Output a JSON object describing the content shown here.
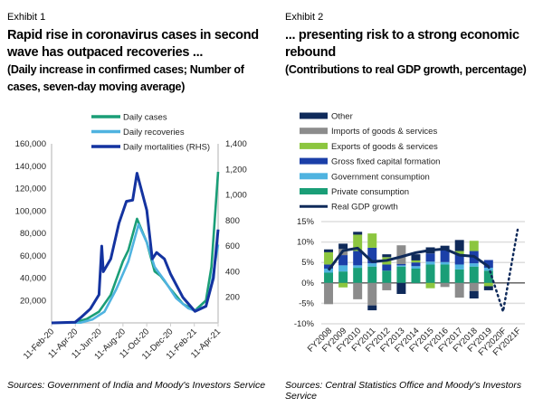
{
  "exhibit1": {
    "label": "Exhibit 1",
    "title": "Rapid rise in coronavirus cases in second wave has outpaced recoveries ...",
    "subtitle": "(Daily increase in confirmed cases; Number of cases, seven-day moving average)",
    "source": "Sources: Government of India and Moody's Investors Service"
  },
  "exhibit2": {
    "label": "Exhibit 2",
    "title": "... presenting risk to a strong economic rebound",
    "subtitle": "(Contributions to real GDP growth, percentage)",
    "source": "Sources: Central Statistics Office and Moody's Investors Service"
  },
  "chart_data": [
    {
      "type": "line",
      "legend_position": "top",
      "grid": false,
      "x_ticks": [
        "11-Feb-20",
        "11-Apr-20",
        "11-Jun-20",
        "11-Aug-20",
        "11-Oct-20",
        "11-Dec-20",
        "11-Feb-21",
        "11-Apr-21"
      ],
      "ylim": [
        0,
        160000
      ],
      "y_ticks": [
        "20,000",
        "40,000",
        "60,000",
        "80,000",
        "100,000",
        "120,000",
        "140,000",
        "160,000"
      ],
      "y2lim": [
        0,
        1400
      ],
      "y2_ticks": [
        "200",
        "400",
        "600",
        "800",
        "1,000",
        "1,200",
        "1,400"
      ],
      "series": [
        {
          "name": "Daily cases",
          "axis": "left",
          "color": "#1a9e77",
          "points": [
            [
              "2020-02-11",
              0
            ],
            [
              "2020-04-11",
              500
            ],
            [
              "2020-05-11",
              3500
            ],
            [
              "2020-06-11",
              10000
            ],
            [
              "2020-07-11",
              25000
            ],
            [
              "2020-08-11",
              55000
            ],
            [
              "2020-08-25",
              65000
            ],
            [
              "2020-09-16",
              93000
            ],
            [
              "2020-10-11",
              72000
            ],
            [
              "2020-10-31",
              46000
            ],
            [
              "2020-11-15",
              42000
            ],
            [
              "2020-12-11",
              30000
            ],
            [
              "2021-01-11",
              17000
            ],
            [
              "2021-02-11",
              11000
            ],
            [
              "2021-03-11",
              20000
            ],
            [
              "2021-03-25",
              50000
            ],
            [
              "2021-04-11",
              135000
            ]
          ]
        },
        {
          "name": "Daily recoveries",
          "axis": "left",
          "color": "#4fb3e0",
          "points": [
            [
              "2020-02-11",
              0
            ],
            [
              "2020-04-25",
              200
            ],
            [
              "2020-05-25",
              3000
            ],
            [
              "2020-06-25",
              10000
            ],
            [
              "2020-07-25",
              30000
            ],
            [
              "2020-08-25",
              55000
            ],
            [
              "2020-09-20",
              88000
            ],
            [
              "2020-10-11",
              72000
            ],
            [
              "2020-10-31",
              50000
            ],
            [
              "2020-11-25",
              38000
            ],
            [
              "2020-12-25",
              22000
            ],
            [
              "2021-01-25",
              13000
            ],
            [
              "2021-02-11",
              11000
            ],
            [
              "2021-03-11",
              15000
            ],
            [
              "2021-03-25",
              35000
            ],
            [
              "2021-04-11",
              70000
            ]
          ]
        },
        {
          "name": "Daily mortalities (RHS)",
          "axis": "right",
          "color": "#1433a0",
          "points": [
            [
              "2020-02-11",
              0
            ],
            [
              "2020-04-11",
              5
            ],
            [
              "2020-04-25",
              40
            ],
            [
              "2020-05-20",
              110
            ],
            [
              "2020-06-11",
              220
            ],
            [
              "2020-06-18",
              600
            ],
            [
              "2020-06-22",
              400
            ],
            [
              "2020-07-11",
              500
            ],
            [
              "2020-08-01",
              780
            ],
            [
              "2020-08-20",
              950
            ],
            [
              "2020-09-05",
              960
            ],
            [
              "2020-09-16",
              1170
            ],
            [
              "2020-10-11",
              880
            ],
            [
              "2020-10-25",
              500
            ],
            [
              "2020-11-05",
              550
            ],
            [
              "2020-11-25",
              500
            ],
            [
              "2020-12-11",
              380
            ],
            [
              "2021-01-11",
              200
            ],
            [
              "2021-02-11",
              90
            ],
            [
              "2021-03-11",
              130
            ],
            [
              "2021-03-30",
              350
            ],
            [
              "2021-04-11",
              730
            ]
          ]
        }
      ]
    },
    {
      "type": "bar",
      "stacked": true,
      "legend_position": "top-left",
      "grid": true,
      "categories": [
        "FY2008",
        "FY2009",
        "FY2010",
        "FY2011",
        "FY2012",
        "FY2013",
        "FY2014",
        "FY2015",
        "FY2016",
        "FY2017",
        "FY2018",
        "FY2019",
        "FY2020F",
        "FY2021F"
      ],
      "ylim": [
        -10,
        15
      ],
      "y_ticks": [
        "-10%",
        "-5%",
        "0%",
        "5%",
        "10%",
        "15%"
      ],
      "series": [
        {
          "name": "Private consumption",
          "color": "#1a9e77",
          "values": [
            2.5,
            2.8,
            3.7,
            4.0,
            3.0,
            4.0,
            3.5,
            4.5,
            4.5,
            3.3,
            4.0,
            3.0,
            null,
            null
          ]
        },
        {
          "name": "Government consumption",
          "color": "#4fb3e0",
          "values": [
            1.0,
            1.5,
            0.6,
            0.8,
            0,
            0.3,
            0.6,
            0.7,
            0.6,
            1.2,
            0.8,
            0.7,
            null,
            null
          ]
        },
        {
          "name": "Gross fixed capital formation",
          "color": "#1b3fa8",
          "values": [
            1.0,
            2.5,
            3.5,
            3.8,
            1.5,
            0.3,
            0.9,
            2.0,
            3.0,
            2.5,
            3.0,
            1.9,
            null,
            null
          ]
        },
        {
          "name": "Exports of goods & services",
          "color": "#8cc63f",
          "values": [
            3.0,
            -1.1,
            4.0,
            3.5,
            1.8,
            0,
            0.5,
            -1.3,
            0,
            0.8,
            2.5,
            -0.8,
            null,
            null
          ]
        },
        {
          "name": "Imports of goods & services",
          "color": "#8c8c8c",
          "values": [
            -5.2,
            1.5,
            -4.0,
            -5.5,
            -1.8,
            4.6,
            0,
            0,
            -1.0,
            -3.6,
            -2.0,
            0,
            null,
            null
          ]
        },
        {
          "name": "Other",
          "color": "#0f2a5a",
          "values": [
            0.7,
            1.3,
            0.7,
            -1.2,
            0.7,
            -2.7,
            1.5,
            1.5,
            1.0,
            2.7,
            -1.8,
            -1.0,
            null,
            null
          ]
        },
        {
          "name": "Real GDP growth",
          "type": "line",
          "color": "#0f2a5a",
          "forecast_style": "dotted",
          "values": [
            3.1,
            7.9,
            8.5,
            5.2,
            5.5,
            6.4,
            7.4,
            8.0,
            8.3,
            6.8,
            6.5,
            4.0,
            -7.0,
            13.0
          ]
        }
      ]
    }
  ]
}
